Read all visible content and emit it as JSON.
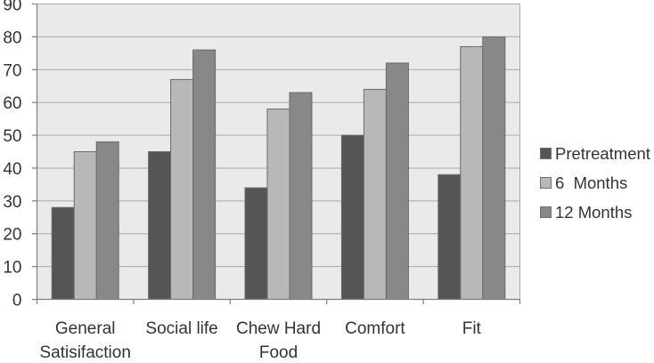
{
  "chart_data": {
    "type": "bar",
    "title": "",
    "xlabel": "",
    "ylabel": "",
    "categories": [
      "General Satisifaction",
      "Social life",
      "Chew Hard Food",
      "Comfort",
      "Fit"
    ],
    "category_label_lines": [
      [
        "General",
        "Satisifaction"
      ],
      [
        "Social life"
      ],
      [
        "Chew Hard",
        "Food"
      ],
      [
        "Comfort"
      ],
      [
        "Fit"
      ]
    ],
    "series": [
      {
        "name": "Pretreatment",
        "values": [
          28,
          45,
          34,
          50,
          38
        ],
        "color": "#555555"
      },
      {
        "name": "6  Months",
        "values": [
          45,
          67,
          58,
          64,
          77
        ],
        "color": "#b8b8b8"
      },
      {
        "name": "12 Months",
        "values": [
          48,
          76,
          63,
          72,
          80
        ],
        "color": "#888888"
      }
    ],
    "ylim": [
      0,
      90
    ],
    "yticks": [
      0,
      10,
      20,
      30,
      40,
      50,
      60,
      70,
      80,
      90
    ],
    "grid": "horizontal",
    "legend_position": "right",
    "style": {
      "plot_bg": "#eaeaea",
      "gridline_color": "#a8a8a8",
      "axis_color": "#7f7f7f",
      "bar_border_color": "#6a6a6a",
      "text_color": "#333333",
      "background": "#ffffff"
    }
  }
}
